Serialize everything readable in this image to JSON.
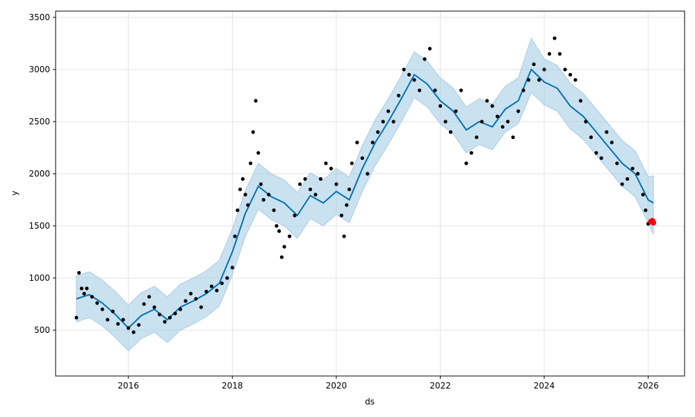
{
  "chart_data": {
    "type": "scatter",
    "title": "",
    "xlabel": "ds",
    "ylabel": "y",
    "xlim": [
      2014.6,
      2026.7
    ],
    "ylim": [
      60,
      3560
    ],
    "x_ticks": [
      2016,
      2018,
      2020,
      2022,
      2024,
      2026
    ],
    "x_tick_labels": [
      "2016",
      "2018",
      "2020",
      "2022",
      "2024",
      "2026"
    ],
    "y_ticks": [
      500,
      1000,
      1500,
      2000,
      2500,
      3000,
      3500
    ],
    "y_tick_labels": [
      "500",
      "1000",
      "1500",
      "2000",
      "2500",
      "3000",
      "3500"
    ],
    "grid": true,
    "colors": {
      "observed": "#000000",
      "forecast_line": "#0072b2",
      "uncertainty_band": "#a6cde6",
      "future_points": "#ff0000"
    },
    "series": [
      {
        "kind": "forecast",
        "x": [
          2015.0,
          2015.25,
          2015.5,
          2015.75,
          2016.0,
          2016.25,
          2016.5,
          2016.75,
          2017.0,
          2017.25,
          2017.5,
          2017.75,
          2018.0,
          2018.25,
          2018.5,
          2018.75,
          2019.0,
          2019.25,
          2019.5,
          2019.75,
          2020.0,
          2020.25,
          2020.5,
          2020.75,
          2021.0,
          2021.25,
          2021.5,
          2021.75,
          2022.0,
          2022.25,
          2022.5,
          2022.75,
          2023.0,
          2023.25,
          2023.5,
          2023.75,
          2024.0,
          2024.25,
          2024.5,
          2024.75,
          2025.0,
          2025.25,
          2025.5,
          2025.75,
          2026.0,
          2026.1
        ],
        "y": [
          800,
          840,
          760,
          650,
          520,
          640,
          700,
          600,
          720,
          780,
          850,
          950,
          1250,
          1620,
          1880,
          1780,
          1720,
          1600,
          1790,
          1720,
          1830,
          1750,
          2050,
          2300,
          2500,
          2720,
          2950,
          2860,
          2700,
          2600,
          2420,
          2500,
          2450,
          2620,
          2700,
          3000,
          2880,
          2820,
          2650,
          2550,
          2400,
          2250,
          2100,
          2000,
          1750,
          1720
        ],
        "lower": [
          580,
          620,
          540,
          430,
          300,
          420,
          480,
          380,
          500,
          560,
          630,
          730,
          1030,
          1400,
          1660,
          1560,
          1500,
          1380,
          1570,
          1500,
          1610,
          1530,
          1830,
          2080,
          2280,
          2500,
          2730,
          2640,
          2480,
          2380,
          2200,
          2280,
          2230,
          2400,
          2480,
          2780,
          2660,
          2600,
          2430,
          2330,
          2180,
          2030,
          1880,
          1780,
          1530,
          1420
        ],
        "upper": [
          1020,
          1060,
          980,
          870,
          740,
          860,
          920,
          820,
          940,
          1000,
          1070,
          1170,
          1470,
          1840,
          2100,
          2000,
          1940,
          1820,
          2010,
          1940,
          2050,
          1970,
          2270,
          2520,
          2720,
          2940,
          3170,
          3080,
          2920,
          2820,
          2640,
          2720,
          2670,
          2840,
          2920,
          3300,
          3100,
          3040,
          2870,
          2770,
          2620,
          2470,
          2320,
          2220,
          1970,
          1980
        ]
      },
      {
        "kind": "observed",
        "x": [
          2015.0,
          2015.05,
          2015.1,
          2015.15,
          2015.2,
          2015.3,
          2015.4,
          2015.5,
          2015.6,
          2015.7,
          2015.8,
          2015.9,
          2016.0,
          2016.1,
          2016.2,
          2016.3,
          2016.4,
          2016.5,
          2016.6,
          2016.7,
          2016.8,
          2016.9,
          2017.0,
          2017.1,
          2017.2,
          2017.3,
          2017.4,
          2017.5,
          2017.6,
          2017.7,
          2017.8,
          2017.9,
          2018.0,
          2018.05,
          2018.1,
          2018.15,
          2018.2,
          2018.25,
          2018.3,
          2018.35,
          2018.4,
          2018.45,
          2018.5,
          2018.55,
          2018.6,
          2018.7,
          2018.8,
          2018.85,
          2018.9,
          2018.95,
          2019.0,
          2019.1,
          2019.2,
          2019.3,
          2019.4,
          2019.5,
          2019.6,
          2019.7,
          2019.8,
          2019.9,
          2020.0,
          2020.1,
          2020.15,
          2020.2,
          2020.25,
          2020.3,
          2020.4,
          2020.5,
          2020.6,
          2020.7,
          2020.8,
          2020.9,
          2021.0,
          2021.1,
          2021.2,
          2021.3,
          2021.4,
          2021.5,
          2021.6,
          2021.7,
          2021.8,
          2021.9,
          2022.0,
          2022.1,
          2022.2,
          2022.3,
          2022.4,
          2022.5,
          2022.6,
          2022.7,
          2022.8,
          2022.9,
          2023.0,
          2023.1,
          2023.2,
          2023.3,
          2023.4,
          2023.5,
          2023.6,
          2023.7,
          2023.8,
          2023.9,
          2024.0,
          2024.1,
          2024.2,
          2024.3,
          2024.4,
          2024.5,
          2024.6,
          2024.7,
          2024.8,
          2024.9,
          2025.0,
          2025.1,
          2025.2,
          2025.3,
          2025.4,
          2025.5,
          2025.6,
          2025.7,
          2025.8,
          2025.9,
          2025.95,
          2026.0
        ],
        "y": [
          620,
          1050,
          900,
          850,
          900,
          820,
          760,
          700,
          600,
          680,
          560,
          600,
          520,
          480,
          550,
          750,
          820,
          720,
          650,
          580,
          620,
          660,
          700,
          780,
          850,
          800,
          720,
          870,
          920,
          880,
          950,
          1000,
          1100,
          1400,
          1650,
          1850,
          1950,
          1800,
          1700,
          2100,
          2400,
          2700,
          2200,
          1900,
          1750,
          1800,
          1650,
          1500,
          1450,
          1200,
          1300,
          1400,
          1600,
          1900,
          1950,
          1850,
          1800,
          1950,
          2100,
          2050,
          1900,
          1600,
          1400,
          1700,
          1850,
          2100,
          2300,
          2150,
          2000,
          2300,
          2400,
          2500,
          2600,
          2500,
          2750,
          3000,
          2950,
          2900,
          2800,
          3100,
          3200,
          2800,
          2650,
          2500,
          2400,
          2600,
          2800,
          2100,
          2200,
          2350,
          2500,
          2700,
          2650,
          2550,
          2450,
          2500,
          2350,
          2600,
          2800,
          2900,
          3050,
          2900,
          3000,
          3150,
          3300,
          3150,
          3000,
          2950,
          2900,
          2700,
          2500,
          2350,
          2200,
          2150,
          2400,
          2300,
          2100,
          1900,
          1950,
          2050,
          2000,
          1800,
          1650,
          1520
        ]
      },
      {
        "kind": "future",
        "x": [
          2026.05,
          2026.08,
          2026.1
        ],
        "y": [
          1540,
          1550,
          1530
        ]
      }
    ]
  }
}
